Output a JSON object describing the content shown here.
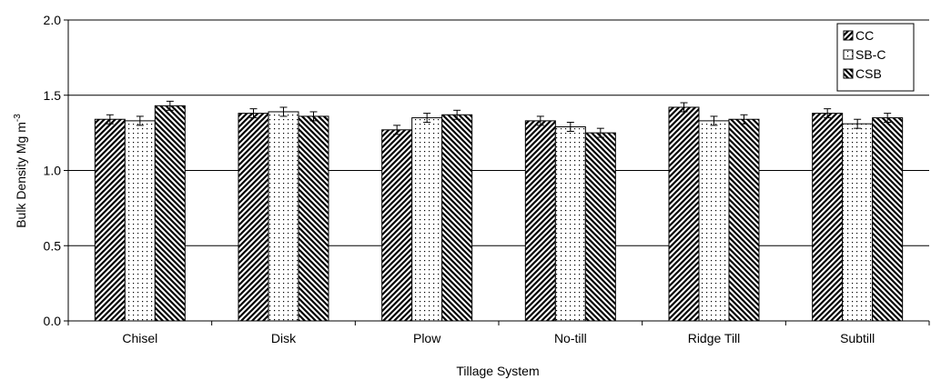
{
  "chart_data": {
    "type": "bar",
    "categories": [
      "Chisel",
      "Disk",
      "Plow",
      "No-till",
      "Ridge Till",
      "Subtill"
    ],
    "series": [
      {
        "name": "CC",
        "values": [
          1.34,
          1.38,
          1.27,
          1.33,
          1.42,
          1.38
        ],
        "errors": [
          0.03,
          0.03,
          0.03,
          0.03,
          0.03,
          0.03
        ],
        "pattern": "diagonal"
      },
      {
        "name": "SB-C",
        "values": [
          1.33,
          1.39,
          1.35,
          1.29,
          1.33,
          1.31
        ],
        "errors": [
          0.03,
          0.03,
          0.03,
          0.03,
          0.03,
          0.03
        ],
        "pattern": "dots"
      },
      {
        "name": "CSB",
        "values": [
          1.43,
          1.36,
          1.37,
          1.25,
          1.34,
          1.35
        ],
        "errors": [
          0.03,
          0.03,
          0.03,
          0.03,
          0.03,
          0.03
        ],
        "pattern": "back-diagonal"
      }
    ],
    "xlabel": "Tillage System",
    "ylabel": "Bulk Density Mg m",
    "ylabel_superscript": "-3",
    "ylim": [
      0.0,
      2.0
    ],
    "yticks": [
      "0.0",
      "0.5",
      "1.0",
      "1.5",
      "2.0"
    ],
    "grid": true,
    "legend_position": "top-right"
  }
}
